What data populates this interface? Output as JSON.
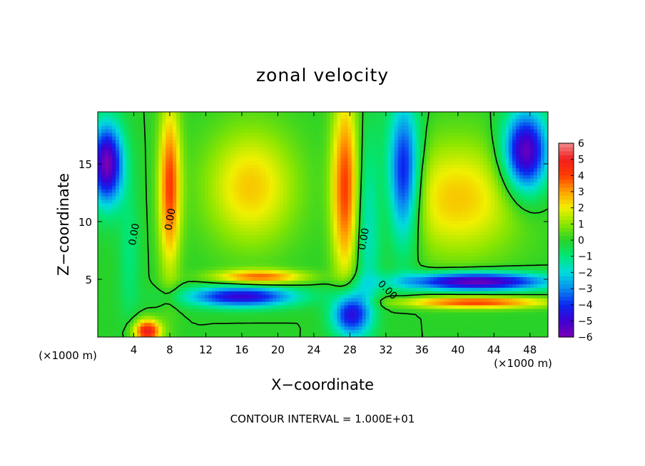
{
  "chart_data": {
    "type": "heatmap",
    "title": "zonal velocity",
    "xlabel": "X−coordinate",
    "ylabel": "Z−coordinate",
    "x_unit_label": "(×1000 m)",
    "z_unit_label": "(×1000 m)",
    "xlim": [
      0,
      50
    ],
    "ylim": [
      0,
      19.5
    ],
    "x_ticks": [
      4,
      8,
      12,
      16,
      20,
      24,
      28,
      32,
      36,
      40,
      44,
      48
    ],
    "x_tick_labels": [
      "4",
      "8",
      "12",
      "16",
      "20",
      "24",
      "28",
      "32",
      "36",
      "40",
      "44",
      "48"
    ],
    "y_ticks": [
      5,
      10,
      15
    ],
    "y_tick_labels": [
      "5",
      "10",
      "15"
    ],
    "colorbar": {
      "min": -6,
      "max": 6,
      "ticks": [
        6,
        5,
        4,
        3,
        2,
        1,
        0,
        -1,
        -2,
        -3,
        -4,
        -5,
        -6
      ],
      "tick_labels": [
        "6",
        "5",
        "4",
        "3",
        "2",
        "1",
        "0",
        "−1",
        "−2",
        "−3",
        "−4",
        "−5",
        "−6"
      ],
      "stops": [
        {
          "value": -6,
          "color": "#7a00b5"
        },
        {
          "value": -5,
          "color": "#3c00d2"
        },
        {
          "value": -4,
          "color": "#0a28f0"
        },
        {
          "value": -3,
          "color": "#0a8cf0"
        },
        {
          "value": -2,
          "color": "#00dcdc"
        },
        {
          "value": -1,
          "color": "#00e678"
        },
        {
          "value": 0,
          "color": "#28d228"
        },
        {
          "value": 1,
          "color": "#8ce600"
        },
        {
          "value": 2,
          "color": "#f0f000"
        },
        {
          "value": 3,
          "color": "#ffa000"
        },
        {
          "value": 4,
          "color": "#ff3c00"
        },
        {
          "value": 5,
          "color": "#f01e1e"
        },
        {
          "value": 6,
          "color": "#f08c8c"
        }
      ]
    },
    "field_features": [
      {
        "name": "westward-core-left",
        "x": 1.0,
        "z": 15.0,
        "amp": -6.0,
        "sx": 1.8,
        "sz": 3.5
      },
      {
        "name": "left-green-column",
        "x": 3.5,
        "z": 7.0,
        "amp": -1.0,
        "sx": 1.2,
        "sz": 6.0
      },
      {
        "name": "red-column-x8",
        "x": 8.0,
        "z": 13.0,
        "amp": 4.0,
        "sx": 1.2,
        "sz": 7.0
      },
      {
        "name": "blue-low-layer",
        "x": 16.0,
        "z": 3.5,
        "amp": -5.0,
        "sx": 6.0,
        "sz": 0.9
      },
      {
        "name": "shear-band",
        "x": 18.0,
        "z": 5.2,
        "amp": 3.5,
        "sx": 5.0,
        "sz": 0.6
      },
      {
        "name": "central-jet-red",
        "x": 27.5,
        "z": 13.0,
        "amp": 4.0,
        "sx": 1.5,
        "sz": 8.0
      },
      {
        "name": "central-jet-green",
        "x": 30.0,
        "z": 10.0,
        "amp": -2.0,
        "sx": 1.5,
        "sz": 8.0
      },
      {
        "name": "lower-blue-x28",
        "x": 28.0,
        "z": 2.0,
        "amp": -5.0,
        "sx": 2.0,
        "sz": 2.0
      },
      {
        "name": "right-low-blue-band",
        "x": 42.0,
        "z": 4.8,
        "amp": -6.0,
        "sx": 8.0,
        "sz": 0.8
      },
      {
        "name": "right-low-red-band",
        "x": 42.0,
        "z": 3.0,
        "amp": 4.0,
        "sx": 8.0,
        "sz": 0.5
      },
      {
        "name": "upper-right-blue",
        "x": 47.5,
        "z": 16.0,
        "amp": -6.0,
        "sx": 2.5,
        "sz": 3.5
      },
      {
        "name": "blue-column-x34",
        "x": 34.0,
        "z": 14.0,
        "amp": -5.0,
        "sx": 1.8,
        "sz": 6.0
      },
      {
        "name": "bottom-left-red",
        "x": 5.5,
        "z": 0.5,
        "amp": 5.0,
        "sx": 1.5,
        "sz": 1.0
      }
    ],
    "contour_interval_label": "CONTOUR INTERVAL = 1.000E+01",
    "contour_labels": [
      "0.00",
      "0.00",
      "0.00",
      "0.00"
    ]
  }
}
